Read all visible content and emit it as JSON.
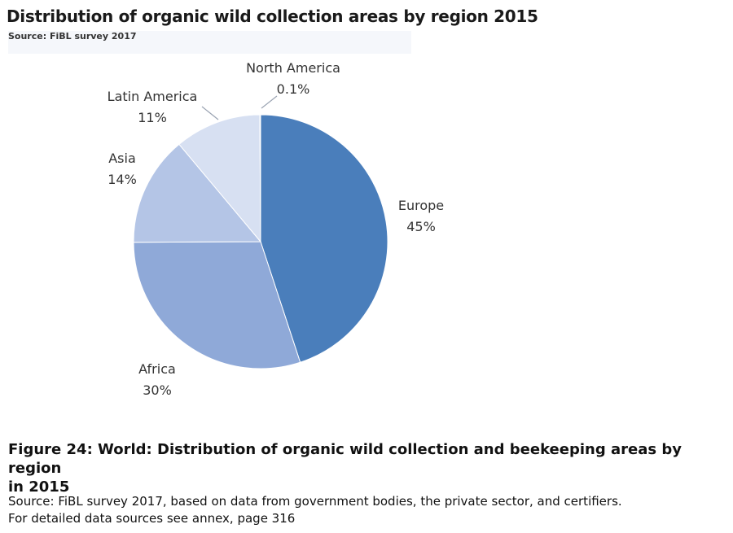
{
  "chart_data": {
    "type": "pie",
    "title": "Distribution of organic wild collection areas by region 2015",
    "source": "Source: FiBL survey 2017",
    "slices": [
      {
        "label": "Europe",
        "value": 45,
        "display": "45%",
        "color": "#4a7ebb"
      },
      {
        "label": "Africa",
        "value": 30,
        "display": "30%",
        "color": "#8fa9d8"
      },
      {
        "label": "Asia",
        "value": 14,
        "display": "14%",
        "color": "#b4c5e6"
      },
      {
        "label": "Latin America",
        "value": 11,
        "display": "11%",
        "color": "#d7e0f2"
      },
      {
        "label": "North America",
        "value": 0.1,
        "display": "0.1%",
        "color": "#eef2fa"
      }
    ]
  },
  "figure": {
    "caption_line1": "Figure 24: World: Distribution of organic wild collection and beekeeping areas by region",
    "caption_line2": "in 2015",
    "source_line1": "Source: FiBL survey 2017, based on data from government bodies, the private sector, and certifiers.",
    "source_line2": "For detailed data sources see annex, page 316"
  }
}
